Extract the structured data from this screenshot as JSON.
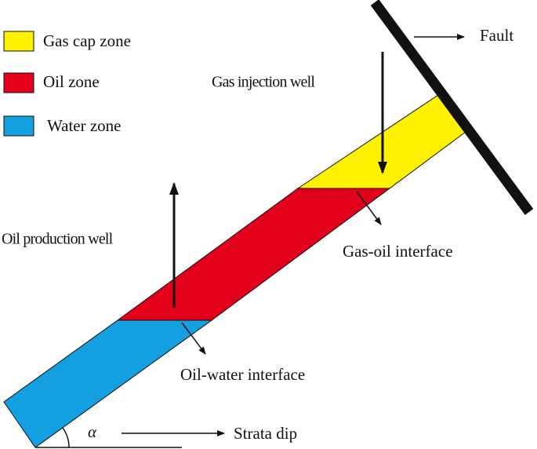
{
  "legend": [
    {
      "label": "Gas cap zone",
      "color": "#fff200"
    },
    {
      "label": "Oil zone",
      "color": "#e3001b"
    },
    {
      "label": "Water zone",
      "color": "#139fe0"
    }
  ],
  "labels": {
    "fault": "Fault",
    "gas_injection_well": "Gas injection well",
    "oil_production_well": "Oil production well",
    "gas_oil_interface": "Gas-oil interface",
    "oil_water_interface": "Oil-water interface",
    "strata_dip": "Strata dip",
    "angle": "α"
  }
}
